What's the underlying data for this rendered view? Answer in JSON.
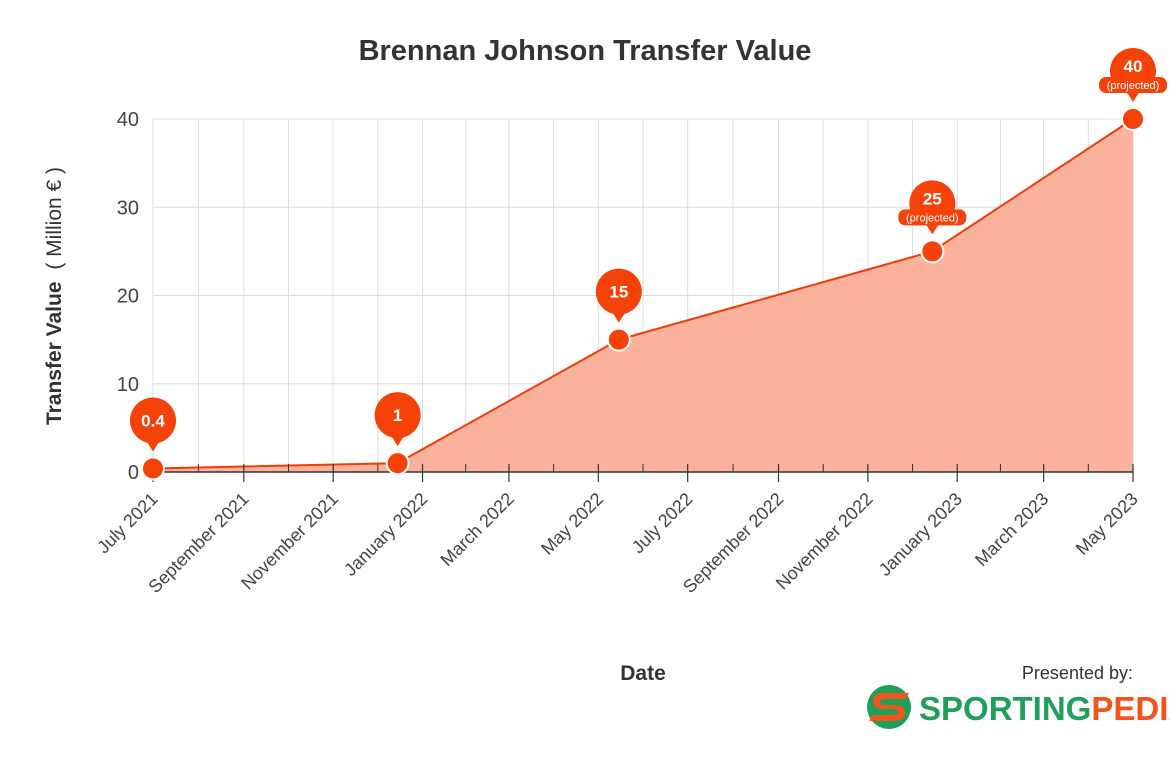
{
  "colors": {
    "line": "#f03c0a",
    "fill": "#fbb29c",
    "marker": "#f54209",
    "brand_green": "#1fa05a",
    "brand_orange": "#f2541b"
  },
  "footer": {
    "presented_by": "Presented by:",
    "brand_part1": "SPORTING",
    "brand_part2": "PEDIA",
    "logo_icon": "sportingpedia-s-logo-icon"
  },
  "chart_data": {
    "type": "area",
    "title": "Brennan Johnson Transfer Value",
    "xlabel": "Date",
    "ylabel": "Transfer Value",
    "ylabel_unit": "( Million € )",
    "ylim": [
      0,
      40
    ],
    "yticks": [
      0,
      10,
      20,
      30,
      40
    ],
    "xlim": [
      "2021-07-01",
      "2023-05-01"
    ],
    "xticks": [
      {
        "date": "2021-07-01",
        "label": "July 2021"
      },
      {
        "date": "2021-09-01",
        "label": "September 2021"
      },
      {
        "date": "2021-11-01",
        "label": "November 2021"
      },
      {
        "date": "2022-01-01",
        "label": "January 2022"
      },
      {
        "date": "2022-03-01",
        "label": "March 2022"
      },
      {
        "date": "2022-05-01",
        "label": "May 2022"
      },
      {
        "date": "2022-07-01",
        "label": "July 2022"
      },
      {
        "date": "2022-09-01",
        "label": "September 2022"
      },
      {
        "date": "2022-11-01",
        "label": "November 2022"
      },
      {
        "date": "2023-01-01",
        "label": "January 2023"
      },
      {
        "date": "2023-03-01",
        "label": "March 2023"
      },
      {
        "date": "2023-05-01",
        "label": "May 2023"
      }
    ],
    "grid": true,
    "legend": false,
    "series": [
      {
        "points": [
          {
            "date": "2021-07-01",
            "value": 0.4,
            "label": "0.4",
            "note": ""
          },
          {
            "date": "2021-12-15",
            "value": 1,
            "label": "1",
            "note": ""
          },
          {
            "date": "2022-05-15",
            "value": 15,
            "label": "15",
            "note": ""
          },
          {
            "date": "2022-12-15",
            "value": 25,
            "label": "25",
            "note": "(projected)"
          },
          {
            "date": "2023-05-01",
            "value": 40,
            "label": "40",
            "note": "(projected)"
          }
        ]
      }
    ]
  }
}
